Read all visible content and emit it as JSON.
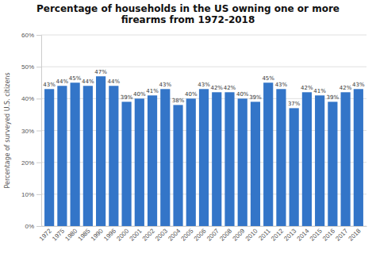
{
  "chart_data": {
    "type": "bar",
    "title": "Percentage of households in the US owning one or more\nfirearms from 1972-2018",
    "ylabel": "Percentage of surveyed U.S. citizens",
    "categories": [
      "1972",
      "1975",
      "1980",
      "1985",
      "1990",
      "1996",
      "2000",
      "2001",
      "2002",
      "2003",
      "2004",
      "2005",
      "2006",
      "2007",
      "2008",
      "2009",
      "2010",
      "2011",
      "2012",
      "2013",
      "2014",
      "2015",
      "2016",
      "2017",
      "2018"
    ],
    "values": [
      43,
      44,
      45,
      44,
      47,
      44,
      39,
      40,
      41,
      43,
      38,
      40,
      43,
      42,
      42,
      40,
      39,
      45,
      43,
      37,
      42,
      41,
      39,
      42,
      43
    ],
    "value_labels": [
      "43%",
      "44%",
      "45%",
      "44%",
      "47%",
      "44%",
      "39%",
      "40%",
      "41%",
      "43%",
      "38%",
      "40%",
      "43%",
      "42%",
      "42%",
      "40%",
      "39%",
      "45%",
      "43%",
      "37%",
      "42%",
      "41%",
      "39%",
      "42%",
      "43%"
    ],
    "data_labels": true,
    "color": "#3375c8",
    "ylim": [
      0,
      60
    ],
    "yticks": [
      {
        "value": 0,
        "label": "0%"
      },
      {
        "value": 10,
        "label": "10%"
      },
      {
        "value": 20,
        "label": "20%"
      },
      {
        "value": 30,
        "label": "30%"
      },
      {
        "value": 40,
        "label": "40%"
      },
      {
        "value": 50,
        "label": "50%"
      },
      {
        "value": 60,
        "label": "60%"
      }
    ],
    "grid": true
  }
}
